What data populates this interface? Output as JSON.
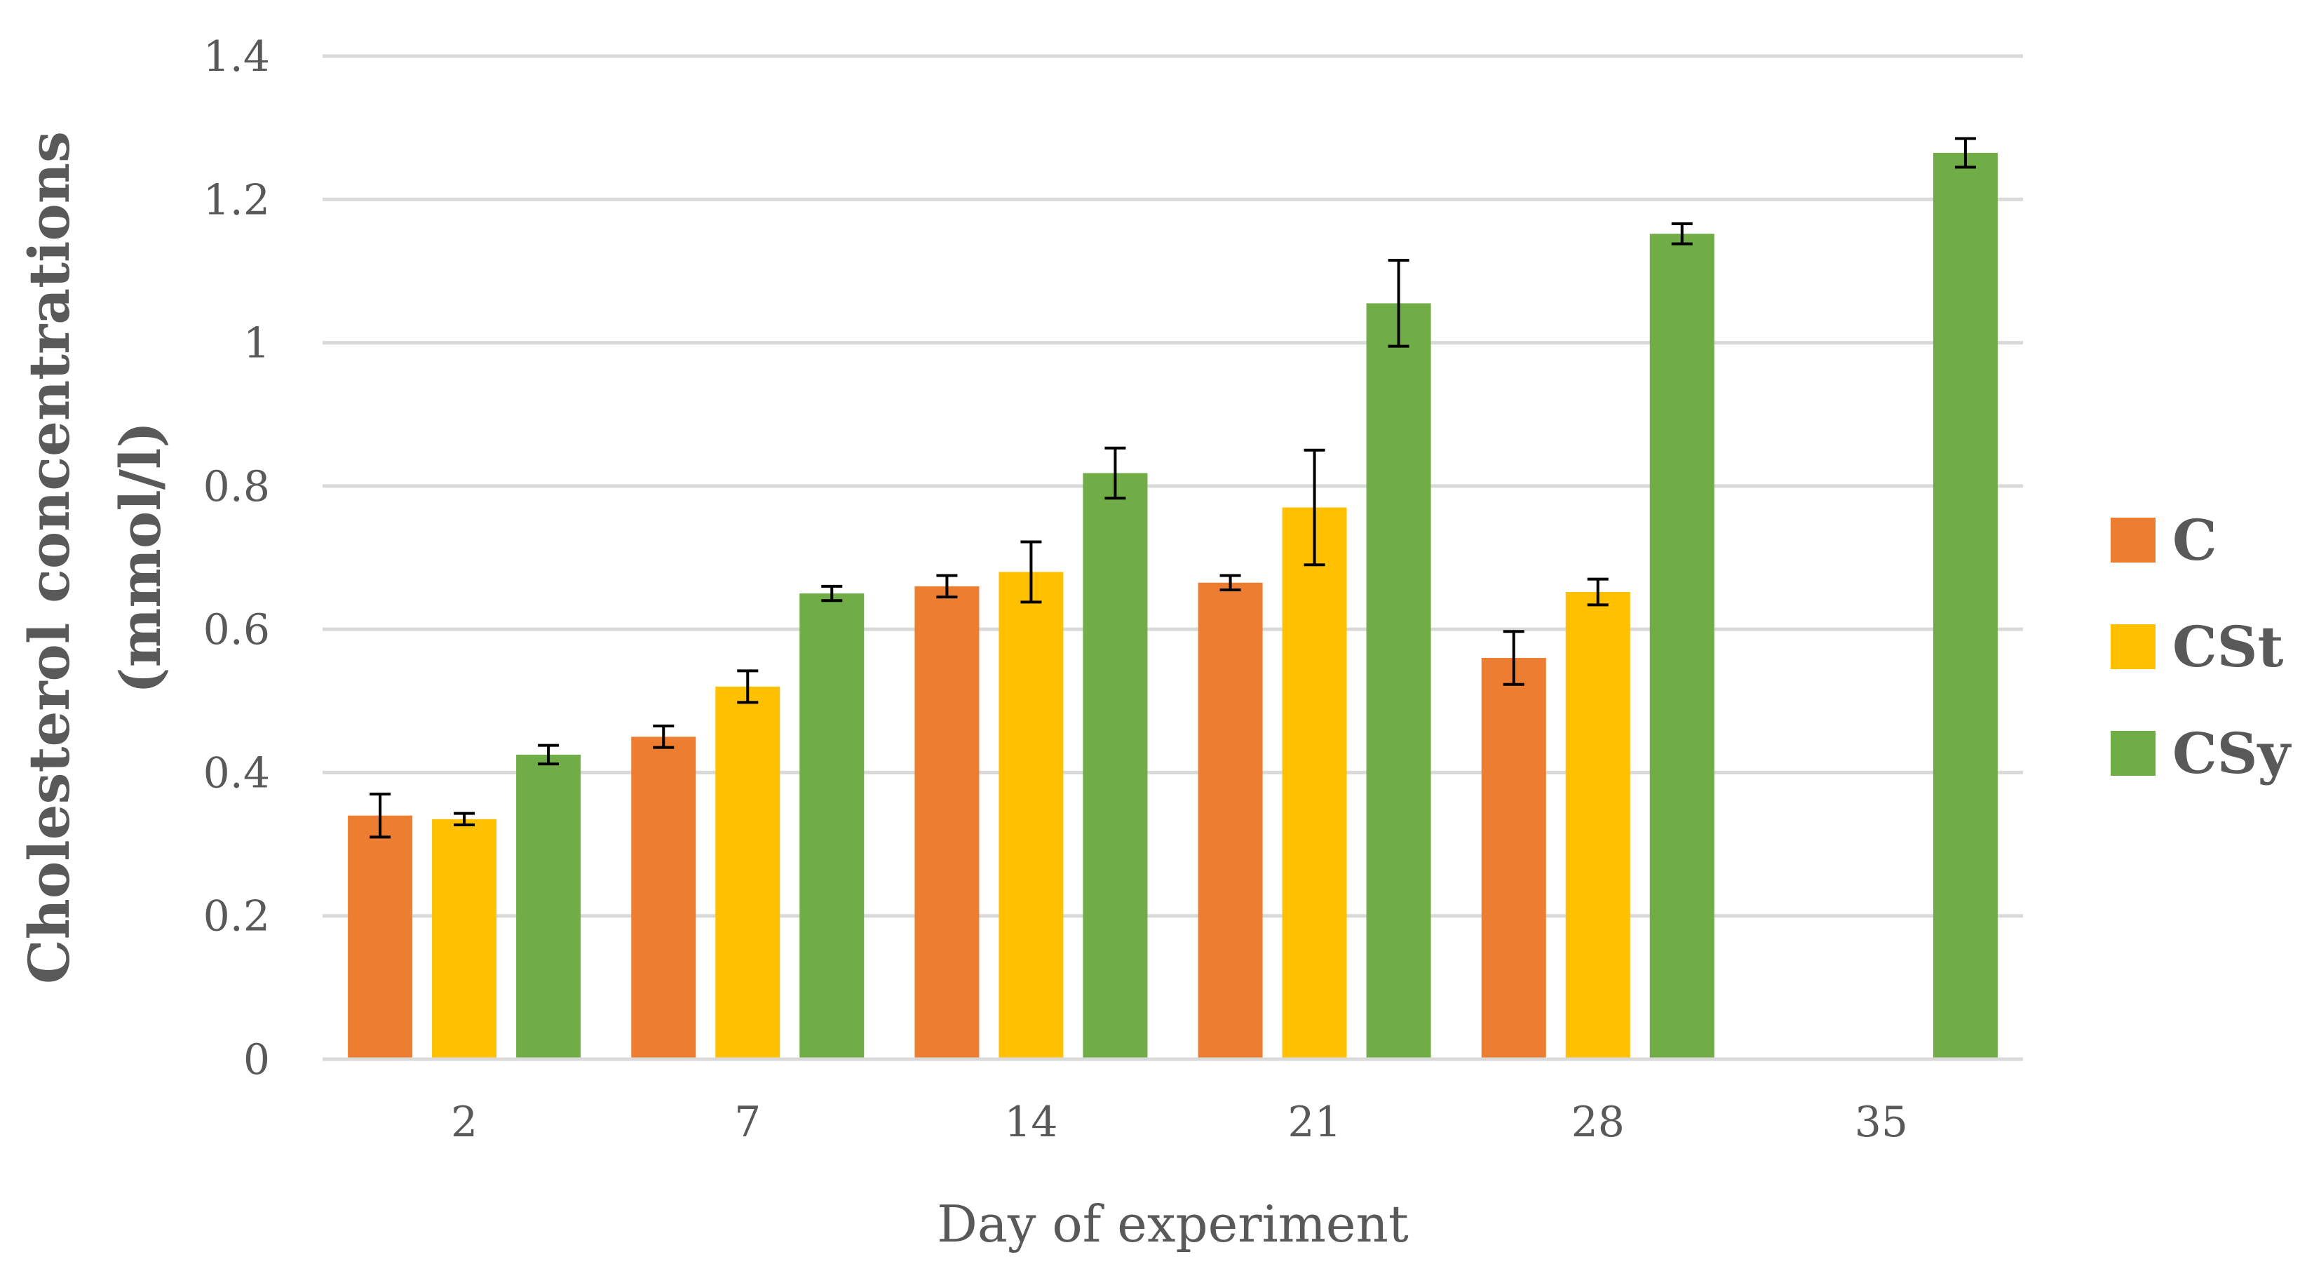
{
  "chart_data": {
    "type": "bar",
    "title": "",
    "xlabel": "Day of experiment",
    "ylabel_lines": [
      "Cholesterol concentrations",
      "(mmol/l)"
    ],
    "categories": [
      "2",
      "7",
      "14",
      "21",
      "28",
      "35"
    ],
    "ylim": [
      0,
      1.4
    ],
    "yticks": [
      0,
      0.2,
      0.4,
      0.6,
      0.8,
      1,
      1.2,
      1.4
    ],
    "ytick_labels": [
      "0",
      "0.2",
      "0.4",
      "0.6",
      "0.8",
      "1",
      "1.2",
      "1.4"
    ],
    "grid": true,
    "legend_position": "right",
    "series": [
      {
        "name": "C",
        "color": "#ED7D31",
        "values": [
          0.34,
          0.45,
          0.66,
          0.665,
          0.56,
          null
        ],
        "errors": [
          0.03,
          0.015,
          0.015,
          0.01,
          0.037,
          null
        ]
      },
      {
        "name": "CSt",
        "color": "#FFC000",
        "values": [
          0.335,
          0.52,
          0.68,
          0.77,
          0.652,
          null
        ],
        "errors": [
          0.008,
          0.022,
          0.042,
          0.08,
          0.018,
          null
        ]
      },
      {
        "name": "CSy",
        "color": "#70AD47",
        "values": [
          0.425,
          0.65,
          0.818,
          1.055,
          1.152,
          1.265
        ],
        "errors": [
          0.013,
          0.01,
          0.035,
          0.06,
          0.014,
          0.02
        ]
      }
    ]
  }
}
